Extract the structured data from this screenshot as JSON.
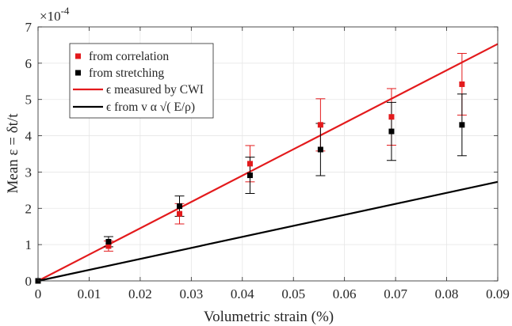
{
  "chart_data": {
    "type": "scatter",
    "xlabel": "Volumetric strain (%)",
    "ylabel": "Mean ε = δt/t",
    "y_exponent_label": "×10",
    "y_exponent_power": "-4",
    "xlim": [
      0,
      0.09
    ],
    "ylim": [
      0,
      7
    ],
    "x_ticks": [
      "0",
      "0.01",
      "0.02",
      "0.03",
      "0.04",
      "0.05",
      "0.06",
      "0.07",
      "0.08",
      "0.09"
    ],
    "y_ticks": [
      "0",
      "1",
      "2",
      "3",
      "4",
      "5",
      "6",
      "7"
    ],
    "grid": true,
    "legend_position": "top-left",
    "series": [
      {
        "name": "from correlation",
        "kind": "markers-errorbars",
        "color": "#e31a1c",
        "points": [
          {
            "x": 0,
            "y": 0,
            "yerr": 0
          },
          {
            "x": 0.0138,
            "y": 0.96,
            "yerr": 0.14
          },
          {
            "x": 0.0277,
            "y": 1.85,
            "yerr": 0.28
          },
          {
            "x": 0.0415,
            "y": 3.23,
            "yerr": 0.5
          },
          {
            "x": 0.0553,
            "y": 4.3,
            "yerr": 0.72
          },
          {
            "x": 0.0692,
            "y": 4.52,
            "yerr": 0.78
          },
          {
            "x": 0.083,
            "y": 5.42,
            "yerr": 0.85
          }
        ]
      },
      {
        "name": "from stretching",
        "kind": "markers-errorbars",
        "color": "#000000",
        "points": [
          {
            "x": 0,
            "y": 0,
            "yerr": 0
          },
          {
            "x": 0.0138,
            "y": 1.08,
            "yerr": 0.14
          },
          {
            "x": 0.0277,
            "y": 2.06,
            "yerr": 0.28
          },
          {
            "x": 0.0415,
            "y": 2.91,
            "yerr": 0.5
          },
          {
            "x": 0.0553,
            "y": 3.62,
            "yerr": 0.72
          },
          {
            "x": 0.0692,
            "y": 4.12,
            "yerr": 0.8
          },
          {
            "x": 0.083,
            "y": 4.3,
            "yerr": 0.85
          }
        ]
      },
      {
        "name": "ϵ measured by CWI",
        "kind": "line",
        "color": "#e31a1c",
        "x": [
          0,
          0.09
        ],
        "y": [
          0,
          6.53
        ]
      },
      {
        "name": "ϵ from v α √( E/ρ)",
        "kind": "line",
        "color": "#000000",
        "x": [
          0,
          0.09
        ],
        "y": [
          0,
          2.73
        ]
      }
    ]
  }
}
